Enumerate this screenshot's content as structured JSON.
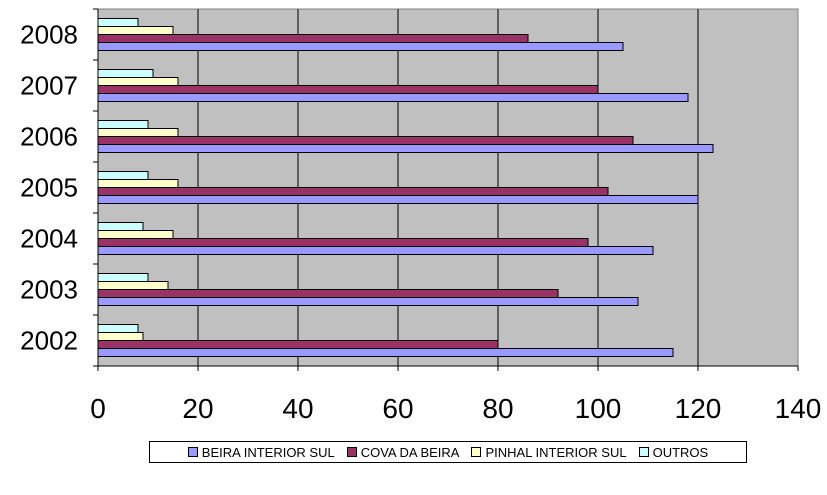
{
  "chart_data": {
    "type": "bar",
    "orientation": "horizontal",
    "title": "",
    "xlabel": "",
    "ylabel": "",
    "categories": [
      "2002",
      "2003",
      "2004",
      "2005",
      "2006",
      "2007",
      "2008"
    ],
    "series": [
      {
        "name": "BEIRA INTERIOR SUL",
        "color": "#9999FF",
        "values": [
          115,
          108,
          111,
          120,
          123,
          118,
          105
        ]
      },
      {
        "name": "COVA DA BEIRA",
        "color": "#993366",
        "values": [
          80,
          92,
          98,
          102,
          107,
          100,
          86
        ]
      },
      {
        "name": "PINHAL INTERIOR SUL",
        "color": "#FFFFCC",
        "values": [
          9,
          14,
          15,
          16,
          16,
          16,
          15
        ]
      },
      {
        "name": "OUTROS",
        "color": "#CCFFFF",
        "values": [
          8,
          10,
          9,
          10,
          10,
          11,
          8
        ]
      }
    ],
    "xlim": [
      0,
      140
    ],
    "xticks": [
      "0",
      "20",
      "40",
      "60",
      "80",
      "100",
      "120",
      "140"
    ],
    "grid": true,
    "plot_background": "#C0C0C0",
    "legend_position": "bottom"
  }
}
